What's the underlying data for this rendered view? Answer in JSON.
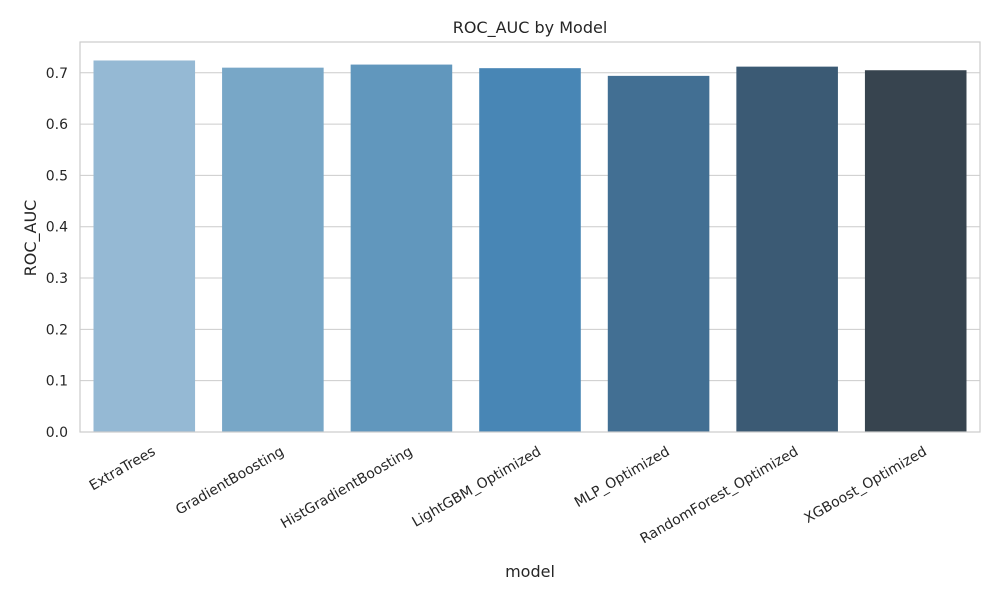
{
  "chart_data": {
    "type": "bar",
    "title": "ROC_AUC by Model",
    "xlabel": "model",
    "ylabel": "ROC_AUC",
    "categories": [
      "ExtraTrees",
      "GradientBoosting",
      "HistGradientBoosting",
      "LightGBM_Optimized",
      "MLP_Optimized",
      "RandomForest_Optimized",
      "XGBoost_Optimized"
    ],
    "values": [
      0.724,
      0.71,
      0.716,
      0.709,
      0.694,
      0.712,
      0.705
    ],
    "colors": [
      "#95b9d4",
      "#78a7c7",
      "#6197bd",
      "#4886b5",
      "#426f93",
      "#3b5a74",
      "#37444f"
    ],
    "ylim": [
      0,
      0.76
    ],
    "yticks": [
      "0.0",
      "0.1",
      "0.2",
      "0.3",
      "0.4",
      "0.5",
      "0.6",
      "0.7"
    ],
    "grid": true,
    "grid_color": "#cccccc",
    "frame_color": "#cccccc"
  }
}
